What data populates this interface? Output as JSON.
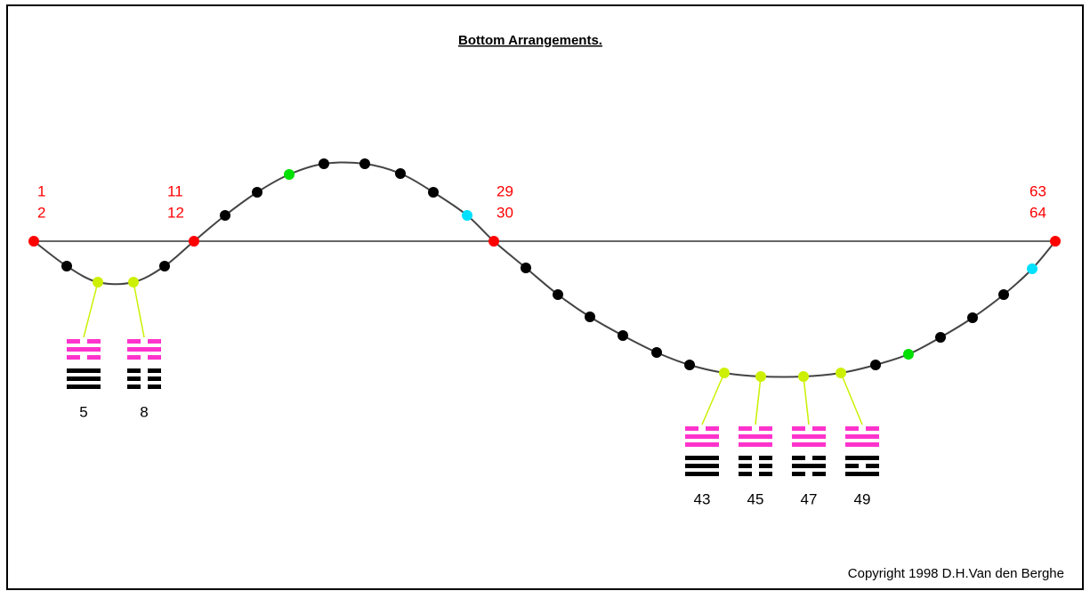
{
  "title": "Bottom Arrangements.",
  "curve_labels": [
    {
      "top": "1",
      "bottom": "2"
    },
    {
      "top": "11",
      "bottom": "12"
    },
    {
      "top": "29",
      "bottom": "30"
    },
    {
      "top": "63",
      "bottom": "64"
    }
  ],
  "hexagrams": [
    {
      "number": "5"
    },
    {
      "number": "8"
    },
    {
      "number": "43"
    },
    {
      "number": "45"
    },
    {
      "number": "47"
    },
    {
      "number": "49"
    }
  ],
  "copyright": "Copyright 1998 D.H.Van den Berghe"
}
